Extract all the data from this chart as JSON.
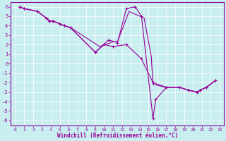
{
  "xlabel": "Windchill (Refroidissement éolien,°C)",
  "bg_color": "#c8eef0",
  "line_color": "#990099",
  "grid_color": "#ffffff",
  "xlim": [
    -0.5,
    23.5
  ],
  "ylim": [
    -6.5,
    6.5
  ],
  "xticks": [
    0,
    1,
    2,
    3,
    4,
    5,
    6,
    7,
    8,
    9,
    10,
    11,
    12,
    13,
    14,
    15,
    16,
    17,
    18,
    19,
    20,
    21,
    22,
    23
  ],
  "yticks": [
    -6,
    -5,
    -4,
    -3,
    -2,
    -1,
    0,
    1,
    2,
    3,
    4,
    5,
    6
  ],
  "line1_x": [
    0.5,
    1.0,
    2.5,
    3.5,
    3.8,
    4.2,
    5.0,
    5.5,
    6.2,
    9.0,
    10.0,
    11.0,
    12.5,
    14.2,
    15.5,
    17.0,
    18.5,
    19.5,
    20.5,
    20.8,
    21.5,
    22.5
  ],
  "line1_y": [
    6.0,
    5.8,
    5.5,
    4.8,
    4.5,
    4.5,
    4.2,
    4.0,
    3.8,
    1.2,
    2.0,
    1.8,
    2.0,
    0.5,
    -2.0,
    -2.5,
    -2.5,
    -2.8,
    -3.0,
    -2.8,
    -2.5,
    -1.8
  ],
  "line2_x": [
    0.5,
    1.0,
    2.5,
    3.5,
    3.8,
    4.2,
    5.0,
    5.5,
    6.2,
    9.0,
    10.5,
    11.5,
    12.5,
    13.5,
    14.2,
    15.5,
    15.8,
    17.0,
    18.5,
    19.5,
    20.5,
    20.8,
    21.5,
    22.5
  ],
  "line2_y": [
    6.0,
    5.8,
    5.5,
    4.8,
    4.5,
    4.5,
    4.2,
    4.0,
    3.8,
    1.2,
    2.5,
    2.2,
    5.8,
    6.0,
    5.0,
    -5.8,
    -3.8,
    -2.5,
    -2.5,
    -2.8,
    -3.0,
    -2.8,
    -2.5,
    -1.8
  ],
  "line3_x": [
    0.5,
    1.0,
    2.5,
    3.5,
    3.8,
    4.2,
    5.0,
    5.5,
    6.2,
    9.5,
    11.0,
    11.5,
    12.8,
    14.5,
    15.3,
    15.5,
    17.0,
    18.5,
    19.5,
    20.5,
    20.8,
    21.5,
    22.5
  ],
  "line3_y": [
    6.0,
    5.8,
    5.5,
    4.8,
    4.5,
    4.5,
    4.2,
    4.0,
    3.8,
    1.8,
    2.3,
    2.3,
    5.5,
    4.8,
    0.8,
    -2.2,
    -2.5,
    -2.5,
    -2.8,
    -3.0,
    -2.8,
    -2.5,
    -1.8
  ]
}
